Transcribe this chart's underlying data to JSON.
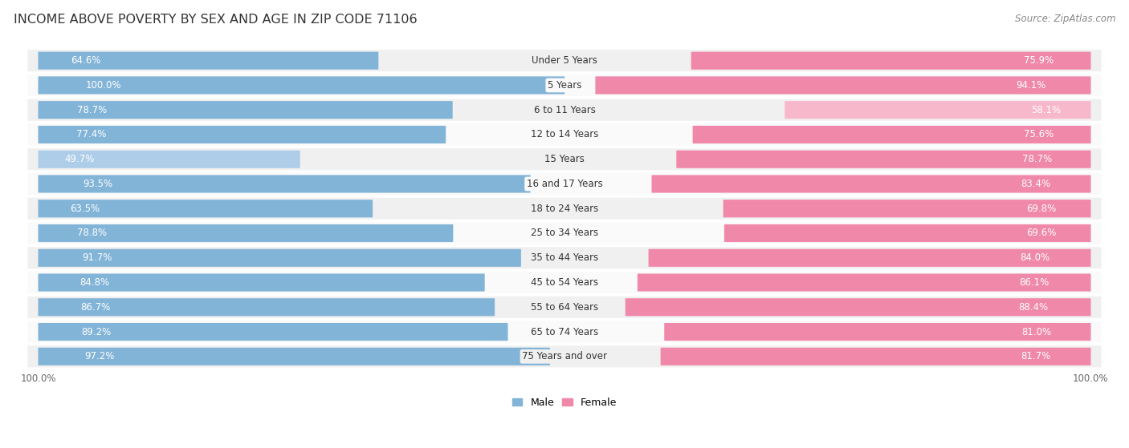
{
  "title": "INCOME ABOVE POVERTY BY SEX AND AGE IN ZIP CODE 71106",
  "source": "Source: ZipAtlas.com",
  "categories": [
    "Under 5 Years",
    "5 Years",
    "6 to 11 Years",
    "12 to 14 Years",
    "15 Years",
    "16 and 17 Years",
    "18 to 24 Years",
    "25 to 34 Years",
    "35 to 44 Years",
    "45 to 54 Years",
    "55 to 64 Years",
    "65 to 74 Years",
    "75 Years and over"
  ],
  "male_values": [
    64.6,
    100.0,
    78.7,
    77.4,
    49.7,
    93.5,
    63.5,
    78.8,
    91.7,
    84.8,
    86.7,
    89.2,
    97.2
  ],
  "female_values": [
    75.9,
    94.1,
    58.1,
    75.6,
    78.7,
    83.4,
    69.8,
    69.6,
    84.0,
    86.1,
    88.4,
    81.0,
    81.7
  ],
  "male_color": "#82b4d8",
  "female_color": "#f088aa",
  "male_color_light": "#aecde8",
  "female_color_light": "#f8b8cc",
  "row_bg_odd": "#f0f0f0",
  "row_bg_even": "#fafafa",
  "title_fontsize": 11.5,
  "label_fontsize": 8.5,
  "cat_fontsize": 8.5,
  "axis_max": 100.0
}
